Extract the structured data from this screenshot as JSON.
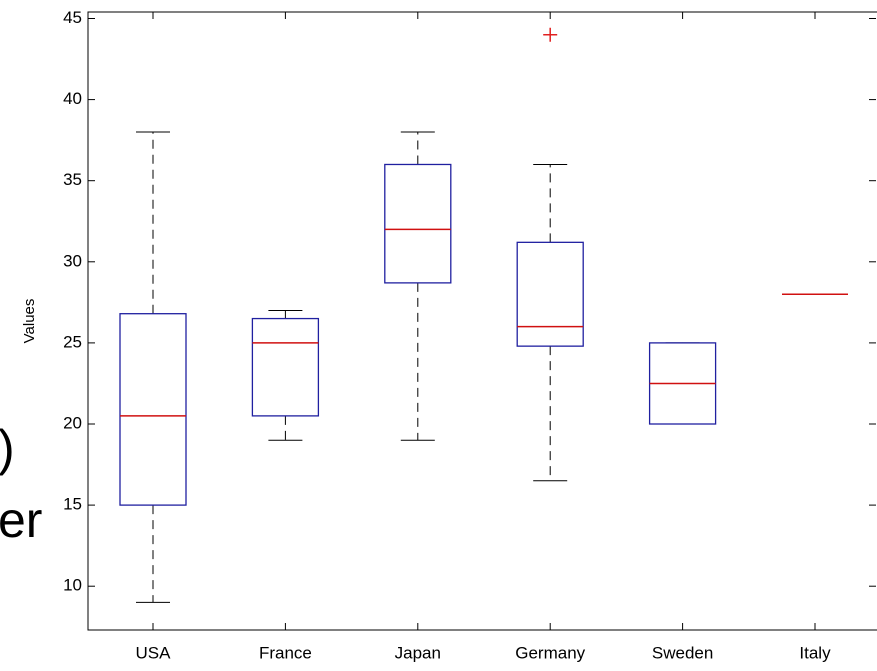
{
  "chart_data": {
    "type": "box",
    "ylabel": "Values",
    "categories": [
      "USA",
      "France",
      "Japan",
      "Germany",
      "Sweden",
      "Italy"
    ],
    "boxes": [
      {
        "low": 9,
        "q1": 15,
        "median": 20.5,
        "q3": 26.8,
        "high": 38,
        "outliers": []
      },
      {
        "low": 19,
        "q1": 20.5,
        "median": 25,
        "q3": 26.5,
        "high": 27,
        "outliers": []
      },
      {
        "low": 19,
        "q1": 28.7,
        "median": 32,
        "q3": 36,
        "high": 38,
        "outliers": []
      },
      {
        "low": 16.5,
        "q1": 24.8,
        "median": 26,
        "q3": 31.2,
        "high": 36,
        "outliers": [
          44
        ]
      },
      {
        "low": 20,
        "q1": 20,
        "median": 22.5,
        "q3": 25,
        "high": 25,
        "outliers": []
      },
      {
        "low": 28,
        "q1": 28,
        "median": 28,
        "q3": 28,
        "high": 28,
        "outliers": []
      }
    ],
    "box_color": "#2020a0",
    "median_color": "#d01010",
    "whisker_color": "#000000",
    "outlier_color": "#e02020",
    "ylim": [
      7.3,
      45.4
    ],
    "yticks": [
      10,
      15,
      20,
      25,
      30,
      35,
      40,
      45
    ]
  },
  "overlay_text": [
    ")",
    "er"
  ]
}
